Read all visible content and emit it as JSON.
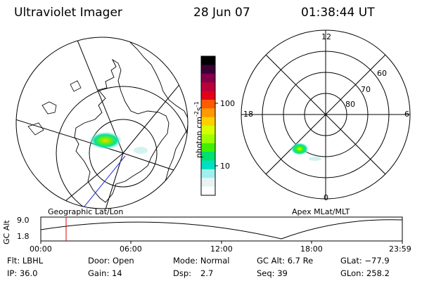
{
  "header": {
    "instrument": "Ultraviolet Imager",
    "date": "28 Jun 07",
    "time": "01:38:44 UT"
  },
  "colorbar": {
    "label": "photon cm",
    "label_sup1": "-2",
    "label_mid": "s",
    "label_sup2": "-1",
    "ticks": [
      "100",
      "10"
    ],
    "colors": [
      "#000000",
      "#3c0034",
      "#80004a",
      "#b8003a",
      "#e0001a",
      "#ff5a00",
      "#ff9a00",
      "#ffd000",
      "#d8ff00",
      "#9cff00",
      "#40f000",
      "#00e070",
      "#00e0c0",
      "#a0f0f0",
      "#e8f4f4",
      "#ffffff"
    ]
  },
  "left_map": {
    "label": "Geographic Lat/Lon"
  },
  "right_map": {
    "label": "Apex MLat/MLT",
    "mlt_labels": {
      "top": "12",
      "bottom": "0",
      "left": "18",
      "right": "6"
    },
    "lat_labels": [
      "60",
      "70",
      "80"
    ]
  },
  "gc_alt_plot": {
    "axis_label": "GC Alt",
    "y_ticks": [
      "9.0",
      "1.8"
    ],
    "x_ticks": [
      "00:00",
      "06:00",
      "12:00",
      "18:00",
      "23:59"
    ]
  },
  "info": {
    "flt": "Flt: LBHL",
    "ip": "IP: 36.0",
    "door": "Door: Open",
    "gain": "Gain: 14",
    "mode": "Mode: Normal",
    "dsp_label": "Dsp:",
    "dsp_value": "2.7",
    "gc_alt": "GC Alt: 6.7 Re",
    "seq": "Seq: 39",
    "glat": "GLat: −77.9",
    "glon": "GLon: 258.2"
  }
}
